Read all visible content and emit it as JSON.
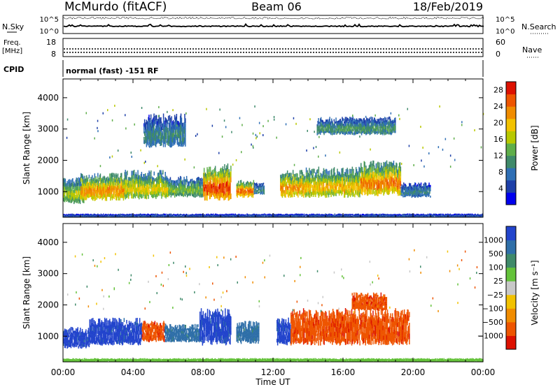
{
  "header": {
    "station": "McMurdo (fitACF)",
    "beam": "Beam 06",
    "date": "18/Feb/2019"
  },
  "panels": {
    "nsky": {
      "label": "N.Sky",
      "right_label": "N.Search",
      "left_ticks": [
        "10^5",
        "10^0"
      ],
      "right_ticks": [
        "10^5",
        "10^0"
      ]
    },
    "freq": {
      "label_line1": "Freq.",
      "label_line2": "[MHz]",
      "right_label": "Nave",
      "left_ticks": [
        "18",
        "8"
      ],
      "right_ticks": [
        "60",
        "0"
      ]
    },
    "cpid": {
      "label": "CPID",
      "mode_text": "normal (fast) -151 RF"
    }
  },
  "chart_data": [
    {
      "type": "heatmap",
      "title": "",
      "xlabel": "Time UT",
      "ylabel": "Slant Range [km]",
      "xlim": [
        "00:00",
        "24:00"
      ],
      "ylim": [
        180,
        4600
      ],
      "x_ticks": [
        "00:00",
        "04:00",
        "08:00",
        "12:00",
        "16:00",
        "20:00",
        "00:00"
      ],
      "y_ticks": [
        1000,
        2000,
        3000,
        4000
      ],
      "colorbar": {
        "label": "Power [dB]",
        "ticks": [
          4,
          8,
          12,
          16,
          20,
          24,
          28
        ],
        "range": [
          0,
          30
        ],
        "colors": [
          "#0000ee",
          "#1d3fa8",
          "#2f6fb5",
          "#3f8a6a",
          "#5fae4a",
          "#b8c800",
          "#f2c200",
          "#f08c00",
          "#ee5500",
          "#dd1100"
        ]
      },
      "regions": [
        {
          "t0": 0.0,
          "t1": 1.2,
          "r0": 600,
          "r1": 1500,
          "level": 16
        },
        {
          "t0": 1.0,
          "t1": 3.5,
          "r0": 700,
          "r1": 1600,
          "level": 22
        },
        {
          "t0": 3.5,
          "t1": 6.0,
          "r0": 750,
          "r1": 1700,
          "level": 18
        },
        {
          "t0": 6.0,
          "t1": 8.0,
          "r0": 800,
          "r1": 1500,
          "level": 14
        },
        {
          "t0": 8.0,
          "t1": 9.6,
          "r0": 700,
          "r1": 1900,
          "level": 26
        },
        {
          "t0": 9.9,
          "t1": 10.9,
          "r0": 800,
          "r1": 1400,
          "level": 24
        },
        {
          "t0": 10.9,
          "t1": 11.5,
          "r0": 900,
          "r1": 1300,
          "level": 10
        },
        {
          "t0": 12.4,
          "t1": 13.8,
          "r0": 800,
          "r1": 1700,
          "level": 22
        },
        {
          "t0": 13.8,
          "t1": 17.0,
          "r0": 800,
          "r1": 1800,
          "level": 20
        },
        {
          "t0": 17.0,
          "t1": 19.3,
          "r0": 850,
          "r1": 2000,
          "level": 23
        },
        {
          "t0": 19.3,
          "t1": 21.0,
          "r0": 800,
          "r1": 1300,
          "level": 9
        },
        {
          "t0": 4.6,
          "t1": 7.0,
          "r0": 2400,
          "r1": 3500,
          "level": 10
        },
        {
          "t0": 14.5,
          "t1": 19.0,
          "r0": 2800,
          "r1": 3400,
          "level": 11
        },
        {
          "t0": 0.0,
          "t1": 24.0,
          "r0": 180,
          "r1": 300,
          "level": 6
        }
      ]
    },
    {
      "type": "heatmap",
      "title": "",
      "xlabel": "Time UT",
      "ylabel": "Slant Range [km]",
      "xlim": [
        "00:00",
        "24:00"
      ],
      "ylim": [
        180,
        4600
      ],
      "x_ticks": [
        "00:00",
        "04:00",
        "08:00",
        "12:00",
        "16:00",
        "20:00",
        "00:00"
      ],
      "y_ticks": [
        1000,
        2000,
        3000,
        4000
      ],
      "colorbar": {
        "label": "Velocity [m s⁻¹]",
        "ticks": [
          "1000",
          "500",
          "100",
          "25",
          "−25",
          "−100",
          "−500",
          "−1000"
        ],
        "range": [
          -1000,
          1000
        ],
        "colors": [
          "#2244cc",
          "#2f6fa8",
          "#3f8a6a",
          "#64c23a",
          "#c8c8c8",
          "#f2c200",
          "#f08c00",
          "#ee5500",
          "#dd1100"
        ]
      },
      "regions": [
        {
          "t0": 0.0,
          "t1": 1.5,
          "r0": 600,
          "r1": 1300,
          "level": 300
        },
        {
          "t0": 1.5,
          "t1": 4.5,
          "r0": 700,
          "r1": 1600,
          "level": 300
        },
        {
          "t0": 4.5,
          "t1": 5.8,
          "r0": 800,
          "r1": 1500,
          "level": -150
        },
        {
          "t0": 5.8,
          "t1": 7.8,
          "r0": 800,
          "r1": 1400,
          "level": 60
        },
        {
          "t0": 7.8,
          "t1": 9.6,
          "r0": 700,
          "r1": 1900,
          "level": 300
        },
        {
          "t0": 9.9,
          "t1": 11.2,
          "r0": 750,
          "r1": 1500,
          "level": 60
        },
        {
          "t0": 12.2,
          "t1": 13.0,
          "r0": 700,
          "r1": 1600,
          "level": 300
        },
        {
          "t0": 13.0,
          "t1": 19.8,
          "r0": 700,
          "r1": 1900,
          "level": -150
        },
        {
          "t0": 16.5,
          "t1": 18.5,
          "r0": 1800,
          "r1": 2400,
          "level": -150
        },
        {
          "t0": 0.0,
          "t1": 24.0,
          "r0": 180,
          "r1": 300,
          "level": 10
        }
      ]
    }
  ]
}
